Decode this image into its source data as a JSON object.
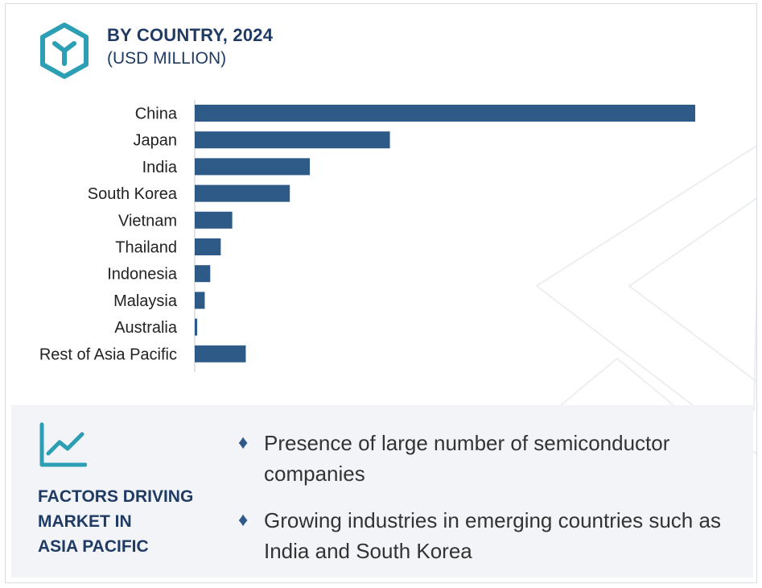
{
  "header": {
    "title": "BY COUNTRY, 2024",
    "subtitle": "(USD MILLION)"
  },
  "colors": {
    "bar": "#2e5a88",
    "accent": "#2c9fb5",
    "heading": "#1f3b64"
  },
  "chart_data": {
    "type": "bar",
    "orientation": "horizontal",
    "title": "BY COUNTRY, 2024",
    "subtitle": "(USD MILLION)",
    "categories": [
      "China",
      "Japan",
      "India",
      "South Korea",
      "Vietnam",
      "Thailand",
      "Indonesia",
      "Malaysia",
      "Australia",
      "Rest of Asia Pacific"
    ],
    "values": [
      100,
      39,
      23,
      19,
      7.5,
      5.2,
      3.1,
      2.0,
      0.5,
      10.2
    ],
    "xlabel": "",
    "ylabel": "",
    "xlim": [
      0,
      100
    ],
    "grid": false,
    "legend": "none"
  },
  "factors": {
    "icon": "line-chart-icon",
    "title_lines": [
      "FACTORS DRIVING",
      "MARKET IN",
      "ASIA PACIFIC"
    ],
    "items": [
      "Presence of large number of semiconductor companies",
      "Growing industries in emerging countries such as India and South Korea"
    ]
  }
}
